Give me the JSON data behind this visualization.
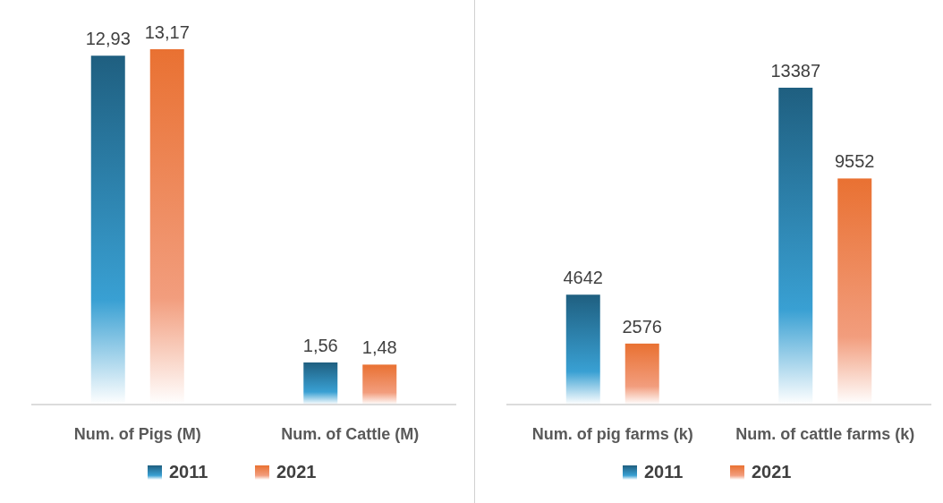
{
  "chart_data": [
    {
      "type": "bar",
      "categories": [
        "Num. of Pigs (M)",
        "Num. of Cattle (M)"
      ],
      "legend": "bottom",
      "series": [
        {
          "name": "2011",
          "color": "#1f5f80",
          "values": [
            12.93,
            1.56
          ],
          "value_labels": [
            "12,93",
            "1,56"
          ]
        },
        {
          "name": "2021",
          "color": "#e97132",
          "values": [
            13.17,
            1.48
          ],
          "value_labels": [
            "13,17",
            "1,48"
          ]
        }
      ]
    },
    {
      "type": "bar",
      "categories": [
        "Num. of pig farms (k)",
        "Num. of cattle farms (k)"
      ],
      "legend": "bottom",
      "series": [
        {
          "name": "2011",
          "color": "#1f5f80",
          "values": [
            4642,
            13387
          ],
          "value_labels": [
            "4642",
            "13387"
          ]
        },
        {
          "name": "2021",
          "color": "#e97132",
          "values": [
            2576,
            9552
          ],
          "value_labels": [
            "2576",
            "9552"
          ]
        }
      ]
    }
  ]
}
